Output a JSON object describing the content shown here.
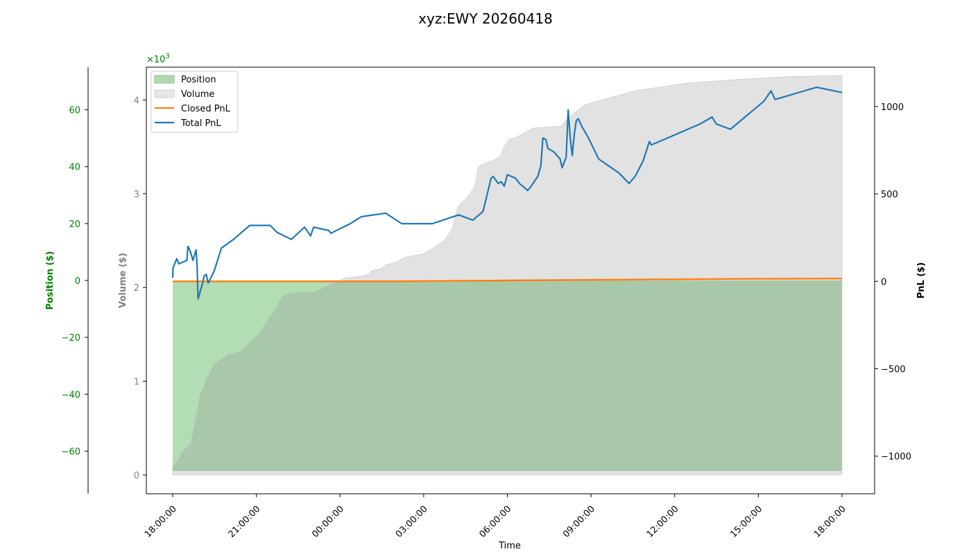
{
  "chart_data": {
    "type": "area",
    "title": "xyz:EWY 20260418",
    "xlabel": "Time",
    "x_ticks": [
      "18:00:00",
      "21:00:00",
      "00:00:00",
      "03:00:00",
      "06:00:00",
      "09:00:00",
      "12:00:00",
      "15:00:00",
      "18:00:00"
    ],
    "x_range_hours": [
      -0.2,
      24.3
    ],
    "axes": {
      "position": {
        "label": "Position ($)",
        "range": [
          -75,
          75
        ],
        "ticks": [
          -60,
          -40,
          -20,
          0,
          20,
          40,
          60
        ],
        "tick_labels": [
          "−60",
          "−40",
          "−20",
          "0",
          "20",
          "40",
          "60"
        ],
        "color": "#008000"
      },
      "volume": {
        "label": "Volume ($)",
        "range": [
          -0.2,
          4.35
        ],
        "ticks": [
          0,
          1,
          2,
          3,
          4
        ],
        "tick_labels": [
          "0",
          "1",
          "2",
          "3",
          "4"
        ],
        "multiplier_base": "×10",
        "multiplier_exp": "3",
        "color": "#808080"
      },
      "pnl": {
        "label": "PnL ($)",
        "range": [
          -1215,
          1225
        ],
        "ticks": [
          -1000,
          -500,
          0,
          500,
          1000
        ],
        "tick_labels": [
          "−1000",
          "−500",
          "0",
          "500",
          "1000"
        ],
        "color": "#000000"
      }
    },
    "legend": {
      "placement": "top-left",
      "entries": [
        {
          "label": "Position",
          "kind": "patch",
          "color": "#a0d8a0"
        },
        {
          "label": "Volume",
          "kind": "patch",
          "color": "#d9d9d9"
        },
        {
          "label": "Closed PnL",
          "kind": "line",
          "color": "#ff7f0e"
        },
        {
          "label": "Total PnL",
          "kind": "line",
          "color": "#1f77b4"
        }
      ]
    },
    "series": [
      {
        "name": "Position",
        "axis": "position",
        "color": "#2ca02c",
        "alpha": 0.35,
        "points": [
          [
            0,
            0
          ],
          [
            0,
            0
          ],
          [
            24,
            0
          ],
          [
            24,
            0
          ]
        ]
      },
      {
        "name": "Volume",
        "axis": "volume",
        "color": "#a0a0a0",
        "alpha": 0.3,
        "points": [
          [
            0,
            0.09
          ],
          [
            0.3,
            0.16
          ],
          [
            0.6,
            0.26
          ],
          [
            1.0,
            0.32
          ],
          [
            1.1,
            0.38
          ],
          [
            1.2,
            0.47
          ],
          [
            1.4,
            0.65
          ],
          [
            1.5,
            0.74
          ],
          [
            1.6,
            0.87
          ],
          [
            1.8,
            0.92
          ],
          [
            1.9,
            1.0
          ],
          [
            2.0,
            1.05
          ],
          [
            2.1,
            1.07
          ],
          [
            2.3,
            1.14
          ],
          [
            2.5,
            1.2
          ],
          [
            2.9,
            1.24
          ],
          [
            3.2,
            1.28
          ],
          [
            4.0,
            1.32
          ],
          [
            4.4,
            1.4
          ],
          [
            5.0,
            1.5
          ],
          [
            6.1,
            1.8
          ],
          [
            6.2,
            1.85
          ],
          [
            6.3,
            1.88
          ],
          [
            6.5,
            1.92
          ],
          [
            7.0,
            1.94
          ],
          [
            7.6,
            1.95
          ],
          [
            8.2,
            1.95
          ],
          [
            8.6,
            1.98
          ],
          [
            9.0,
            2.02
          ],
          [
            9.5,
            2.06
          ],
          [
            10.0,
            2.1
          ],
          [
            11.0,
            2.12
          ],
          [
            11.4,
            2.14
          ],
          [
            11.6,
            2.18
          ],
          [
            12.1,
            2.2
          ],
          [
            12.4,
            2.24
          ],
          [
            13.0,
            2.27
          ],
          [
            13.5,
            2.32
          ],
          [
            14.6,
            2.36
          ],
          [
            15.0,
            2.4
          ],
          [
            15.8,
            2.5
          ],
          [
            16.0,
            2.55
          ],
          [
            16.2,
            2.6
          ],
          [
            16.3,
            2.63
          ],
          [
            16.4,
            2.72
          ],
          [
            16.5,
            2.78
          ],
          [
            16.6,
            2.85
          ],
          [
            16.8,
            2.9
          ],
          [
            17.1,
            2.95
          ],
          [
            17.3,
            3.0
          ],
          [
            17.5,
            3.05
          ],
          [
            17.7,
            3.15
          ],
          [
            17.8,
            3.28
          ],
          [
            18.0,
            3.31
          ],
          [
            18.6,
            3.35
          ],
          [
            19.1,
            3.4
          ],
          [
            19.3,
            3.5
          ],
          [
            19.6,
            3.58
          ],
          [
            20.0,
            3.6
          ],
          [
            21.0,
            3.7
          ],
          [
            22.6,
            3.72
          ],
          [
            23.0,
            3.8
          ],
          [
            24.0,
            3.95
          ],
          [
            27.0,
            4.1
          ],
          [
            30.0,
            4.18
          ],
          [
            33.0,
            4.22
          ],
          [
            36.0,
            4.25
          ],
          [
            39.0,
            4.26
          ]
        ]
      },
      {
        "name": "Closed PnL",
        "axis": "pnl",
        "color": "#ff7f0e",
        "points": [
          [
            0,
            0
          ],
          [
            6,
            0
          ],
          [
            12,
            0
          ],
          [
            15,
            2
          ],
          [
            18,
            4
          ],
          [
            21,
            6
          ],
          [
            24,
            8
          ],
          [
            27,
            10
          ],
          [
            30,
            12
          ],
          [
            33,
            14
          ],
          [
            39,
            16
          ]
        ]
      },
      {
        "name": "Total PnL",
        "axis": "pnl",
        "color": "#1f77b4",
        "points": [
          [
            0,
            20
          ],
          [
            0.03,
            75
          ],
          [
            0.4,
            130
          ],
          [
            0.6,
            100
          ],
          [
            1.4,
            120
          ],
          [
            1.5,
            200
          ],
          [
            1.6,
            190
          ],
          [
            1.8,
            160
          ],
          [
            2.0,
            120
          ],
          [
            2.3,
            180
          ],
          [
            2.4,
            100
          ],
          [
            2.5,
            -100
          ],
          [
            2.9,
            -20
          ],
          [
            3.1,
            30
          ],
          [
            3.3,
            40
          ],
          [
            3.5,
            -10
          ],
          [
            4.1,
            60
          ],
          [
            4.8,
            190
          ],
          [
            6.0,
            240
          ],
          [
            7.6,
            320
          ],
          [
            9.6,
            320
          ],
          [
            10.3,
            280
          ],
          [
            11.7,
            240
          ],
          [
            13.0,
            310
          ],
          [
            13.6,
            260
          ],
          [
            13.9,
            310
          ],
          [
            15.4,
            290
          ],
          [
            15.6,
            275
          ],
          [
            17.5,
            330
          ],
          [
            18.6,
            370
          ],
          [
            21.0,
            390
          ],
          [
            22.6,
            330
          ],
          [
            25.6,
            330
          ],
          [
            28.2,
            380
          ],
          [
            29.6,
            350
          ],
          [
            30.6,
            400
          ],
          [
            31.4,
            590
          ],
          [
            31.6,
            600
          ],
          [
            32.1,
            560
          ],
          [
            32.4,
            570
          ],
          [
            32.7,
            545
          ],
          [
            33.0,
            610
          ],
          [
            33.8,
            590
          ],
          [
            34.2,
            560
          ],
          [
            34.8,
            530
          ],
          [
            35.0,
            520
          ],
          [
            35.3,
            540
          ],
          [
            36.0,
            600
          ],
          [
            36.3,
            660
          ],
          [
            36.5,
            820
          ],
          [
            36.8,
            810
          ],
          [
            37.0,
            760
          ],
          [
            37.6,
            740
          ],
          [
            37.9,
            720
          ],
          [
            38.2,
            700
          ],
          [
            38.4,
            650
          ],
          [
            38.8,
            710
          ],
          [
            39.0,
            980
          ],
          [
            39.2,
            820
          ],
          [
            39.4,
            720
          ],
          [
            39.6,
            840
          ],
          [
            39.8,
            920
          ],
          [
            40.0,
            930
          ],
          [
            40.4,
            880
          ],
          [
            41.0,
            820
          ],
          [
            42.0,
            700
          ],
          [
            44.0,
            620
          ],
          [
            45.0,
            560
          ],
          [
            45.6,
            600
          ],
          [
            46.4,
            690
          ],
          [
            47.0,
            800
          ],
          [
            47.2,
            780
          ],
          [
            48.8,
            820
          ],
          [
            52.0,
            900
          ],
          [
            53.2,
            940
          ],
          [
            53.6,
            900
          ],
          [
            55.0,
            870
          ],
          [
            58.3,
            1030
          ],
          [
            59.0,
            1090
          ],
          [
            59.4,
            1040
          ],
          [
            63.5,
            1110
          ],
          [
            66.0,
            1080
          ]
        ]
      }
    ]
  }
}
